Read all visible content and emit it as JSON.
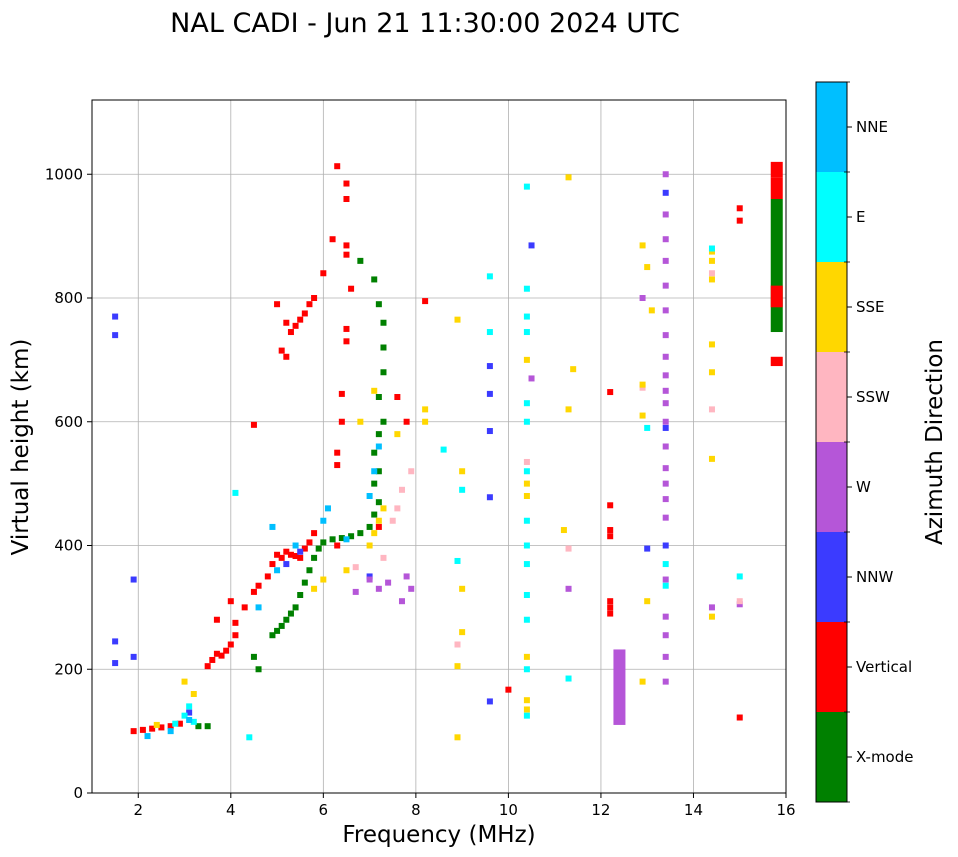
{
  "chart_data": {
    "type": "scatter",
    "title": "NAL CADI - Jun 21 11:30:00 2024 UTC",
    "xlabel": "Frequency (MHz)",
    "ylabel": "Virtual height (km)",
    "xlim": [
      1,
      16
    ],
    "ylim": [
      0,
      1120
    ],
    "xticks": [
      2,
      4,
      6,
      8,
      10,
      12,
      14,
      16
    ],
    "yticks": [
      0,
      200,
      400,
      600,
      800,
      1000
    ],
    "grid": true,
    "colorbar": {
      "label": "Azimuth Direction",
      "categories": [
        {
          "name": "X-mode",
          "color": "#008000"
        },
        {
          "name": "Vertical",
          "color": "#ff0000"
        },
        {
          "name": "NNW",
          "color": "#3b3bff"
        },
        {
          "name": "W",
          "color": "#b556d8"
        },
        {
          "name": "SSW",
          "color": "#ffb6c1"
        },
        {
          "name": "SSE",
          "color": "#ffd700"
        },
        {
          "name": "E",
          "color": "#00ffff"
        },
        {
          "name": "NNE",
          "color": "#00bfff"
        }
      ]
    },
    "series": [
      {
        "name": "Vertical",
        "color": "#ff0000",
        "points": [
          [
            1.9,
            100
          ],
          [
            2.1,
            102
          ],
          [
            2.3,
            104
          ],
          [
            2.5,
            106
          ],
          [
            2.7,
            108
          ],
          [
            2.9,
            112
          ],
          [
            3.5,
            205
          ],
          [
            3.6,
            215
          ],
          [
            3.7,
            225
          ],
          [
            3.8,
            222
          ],
          [
            3.9,
            230
          ],
          [
            4.0,
            240
          ],
          [
            4.1,
            255
          ],
          [
            4.1,
            275
          ],
          [
            4.3,
            300
          ],
          [
            4.5,
            325
          ],
          [
            4.6,
            335
          ],
          [
            4.8,
            350
          ],
          [
            4.9,
            370
          ],
          [
            5.0,
            385
          ],
          [
            5.1,
            380
          ],
          [
            5.2,
            390
          ],
          [
            5.3,
            385
          ],
          [
            5.4,
            383
          ],
          [
            5.5,
            380
          ],
          [
            5.6,
            395
          ],
          [
            5.7,
            405
          ],
          [
            5.8,
            420
          ],
          [
            3.7,
            280
          ],
          [
            4.0,
            310
          ],
          [
            4.5,
            595
          ],
          [
            5.0,
            790
          ],
          [
            5.2,
            760
          ],
          [
            5.3,
            745
          ],
          [
            5.4,
            755
          ],
          [
            5.5,
            765
          ],
          [
            5.6,
            775
          ],
          [
            5.7,
            790
          ],
          [
            5.8,
            800
          ],
          [
            6.0,
            840
          ],
          [
            5.1,
            715
          ],
          [
            5.2,
            705
          ],
          [
            6.3,
            400
          ],
          [
            6.3,
            530
          ],
          [
            6.3,
            550
          ],
          [
            6.4,
            600
          ],
          [
            6.4,
            645
          ],
          [
            6.5,
            730
          ],
          [
            6.5,
            750
          ],
          [
            6.5,
            870
          ],
          [
            6.5,
            885
          ],
          [
            6.5,
            960
          ],
          [
            6.5,
            985
          ],
          [
            6.6,
            815
          ],
          [
            6.2,
            895
          ],
          [
            6.3,
            1013
          ],
          [
            7.2,
            430
          ],
          [
            7.6,
            640
          ],
          [
            7.8,
            600
          ],
          [
            8.2,
            795
          ],
          [
            10.0,
            167
          ],
          [
            12.2,
            300
          ],
          [
            12.2,
            310
          ],
          [
            12.2,
            290
          ],
          [
            12.2,
            415
          ],
          [
            12.2,
            425
          ],
          [
            12.2,
            465
          ],
          [
            12.2,
            648
          ],
          [
            15.0,
            925
          ],
          [
            15.0,
            945
          ],
          [
            15.0,
            122
          ]
        ]
      },
      {
        "name": "X-mode",
        "color": "#008000",
        "points": [
          [
            3.3,
            108
          ],
          [
            3.5,
            108
          ],
          [
            4.9,
            255
          ],
          [
            5.0,
            262
          ],
          [
            5.1,
            270
          ],
          [
            5.2,
            280
          ],
          [
            5.3,
            290
          ],
          [
            5.4,
            300
          ],
          [
            5.5,
            320
          ],
          [
            5.6,
            340
          ],
          [
            5.7,
            360
          ],
          [
            5.8,
            380
          ],
          [
            5.9,
            395
          ],
          [
            6.0,
            405
          ],
          [
            6.2,
            410
          ],
          [
            6.4,
            412
          ],
          [
            6.6,
            415
          ],
          [
            6.8,
            420
          ],
          [
            7.0,
            430
          ],
          [
            7.1,
            450
          ],
          [
            7.2,
            470
          ],
          [
            7.1,
            500
          ],
          [
            7.2,
            520
          ],
          [
            7.1,
            550
          ],
          [
            7.2,
            580
          ],
          [
            7.3,
            600
          ],
          [
            7.2,
            640
          ],
          [
            7.3,
            680
          ],
          [
            7.3,
            720
          ],
          [
            7.3,
            760
          ],
          [
            7.2,
            790
          ],
          [
            7.1,
            830
          ],
          [
            6.8,
            860
          ],
          [
            4.6,
            200
          ],
          [
            4.5,
            220
          ]
        ]
      },
      {
        "name": "NNW",
        "color": "#3b3bff",
        "points": [
          [
            1.5,
            740
          ],
          [
            1.5,
            770
          ],
          [
            1.5,
            245
          ],
          [
            1.5,
            210
          ],
          [
            1.9,
            345
          ],
          [
            1.9,
            220
          ],
          [
            3.1,
            130
          ],
          [
            5.2,
            370
          ],
          [
            5.5,
            390
          ],
          [
            7.0,
            350
          ],
          [
            9.6,
            148
          ],
          [
            9.6,
            478
          ],
          [
            9.6,
            585
          ],
          [
            9.6,
            645
          ],
          [
            9.6,
            690
          ],
          [
            10.5,
            885
          ],
          [
            13.0,
            395
          ],
          [
            13.4,
            400
          ],
          [
            13.4,
            590
          ],
          [
            13.4,
            970
          ]
        ]
      },
      {
        "name": "W",
        "color": "#b556d8",
        "points": [
          [
            6.7,
            325
          ],
          [
            7.0,
            345
          ],
          [
            7.2,
            330
          ],
          [
            7.4,
            340
          ],
          [
            7.8,
            350
          ],
          [
            7.9,
            330
          ],
          [
            7.7,
            310
          ],
          [
            11.3,
            330
          ],
          [
            12.9,
            800
          ],
          [
            13.4,
            180
          ],
          [
            13.4,
            220
          ],
          [
            13.4,
            255
          ],
          [
            13.4,
            285
          ],
          [
            13.4,
            345
          ],
          [
            13.4,
            445
          ],
          [
            13.4,
            475
          ],
          [
            13.4,
            500
          ],
          [
            13.4,
            525
          ],
          [
            13.4,
            560
          ],
          [
            13.4,
            600
          ],
          [
            13.4,
            630
          ],
          [
            13.4,
            650
          ],
          [
            13.4,
            675
          ],
          [
            13.4,
            705
          ],
          [
            13.4,
            740
          ],
          [
            13.4,
            780
          ],
          [
            13.4,
            820
          ],
          [
            13.4,
            860
          ],
          [
            13.4,
            895
          ],
          [
            13.4,
            935
          ],
          [
            13.4,
            1000
          ],
          [
            14.4,
            300
          ],
          [
            15.0,
            305
          ],
          [
            10.5,
            670
          ]
        ]
      },
      {
        "name": "SSW",
        "color": "#ffb6c1",
        "points": [
          [
            6.7,
            365
          ],
          [
            7.3,
            380
          ],
          [
            7.6,
            460
          ],
          [
            7.7,
            490
          ],
          [
            7.5,
            440
          ],
          [
            7.9,
            520
          ],
          [
            8.9,
            240
          ],
          [
            10.4,
            535
          ],
          [
            11.3,
            395
          ],
          [
            12.9,
            655
          ],
          [
            14.4,
            620
          ],
          [
            14.4,
            840
          ],
          [
            15.0,
            310
          ]
        ]
      },
      {
        "name": "SSE",
        "color": "#ffd700",
        "points": [
          [
            2.4,
            110
          ],
          [
            3.2,
            160
          ],
          [
            3.0,
            180
          ],
          [
            5.8,
            330
          ],
          [
            6.0,
            345
          ],
          [
            6.5,
            360
          ],
          [
            7.0,
            400
          ],
          [
            7.1,
            420
          ],
          [
            7.2,
            440
          ],
          [
            7.3,
            460
          ],
          [
            6.8,
            600
          ],
          [
            7.1,
            650
          ],
          [
            7.6,
            580
          ],
          [
            8.2,
            600
          ],
          [
            8.2,
            620
          ],
          [
            8.9,
            90
          ],
          [
            8.9,
            205
          ],
          [
            9.0,
            260
          ],
          [
            9.0,
            330
          ],
          [
            9.0,
            520
          ],
          [
            8.9,
            765
          ],
          [
            10.4,
            135
          ],
          [
            10.4,
            150
          ],
          [
            10.4,
            220
          ],
          [
            10.4,
            480
          ],
          [
            10.4,
            500
          ],
          [
            10.4,
            700
          ],
          [
            11.2,
            425
          ],
          [
            11.3,
            995
          ],
          [
            11.3,
            620
          ],
          [
            11.4,
            685
          ],
          [
            12.9,
            180
          ],
          [
            12.9,
            610
          ],
          [
            12.9,
            660
          ],
          [
            12.9,
            885
          ],
          [
            13.0,
            310
          ],
          [
            13.0,
            850
          ],
          [
            13.1,
            780
          ],
          [
            14.4,
            285
          ],
          [
            14.4,
            540
          ],
          [
            14.4,
            680
          ],
          [
            14.4,
            725
          ],
          [
            14.4,
            830
          ],
          [
            14.4,
            860
          ],
          [
            14.4,
            875
          ]
        ]
      },
      {
        "name": "E",
        "color": "#00ffff",
        "points": [
          [
            2.8,
            112
          ],
          [
            3.0,
            125
          ],
          [
            3.1,
            140
          ],
          [
            3.2,
            115
          ],
          [
            8.6,
            555
          ],
          [
            8.9,
            375
          ],
          [
            9.0,
            490
          ],
          [
            9.6,
            745
          ],
          [
            9.6,
            835
          ],
          [
            10.4,
            125
          ],
          [
            10.4,
            200
          ],
          [
            10.4,
            280
          ],
          [
            10.4,
            320
          ],
          [
            10.4,
            370
          ],
          [
            10.4,
            400
          ],
          [
            10.4,
            440
          ],
          [
            10.4,
            520
          ],
          [
            10.4,
            600
          ],
          [
            10.4,
            630
          ],
          [
            10.4,
            745
          ],
          [
            10.4,
            770
          ],
          [
            10.4,
            815
          ],
          [
            10.4,
            980
          ],
          [
            11.3,
            185
          ],
          [
            13.0,
            590
          ],
          [
            13.4,
            335
          ],
          [
            13.4,
            370
          ],
          [
            14.4,
            880
          ],
          [
            15.0,
            350
          ],
          [
            4.4,
            90
          ],
          [
            4.1,
            485
          ]
        ]
      },
      {
        "name": "NNE",
        "color": "#00bfff",
        "points": [
          [
            5.0,
            360
          ],
          [
            5.4,
            400
          ],
          [
            6.0,
            440
          ],
          [
            6.1,
            460
          ],
          [
            6.5,
            410
          ],
          [
            7.0,
            480
          ],
          [
            7.1,
            520
          ],
          [
            7.2,
            560
          ],
          [
            4.9,
            430
          ],
          [
            4.6,
            300
          ],
          [
            2.2,
            92
          ],
          [
            2.7,
            100
          ],
          [
            3.1,
            118
          ]
        ]
      }
    ],
    "columns": [
      {
        "name": "Vertical",
        "x": 15.8,
        "y0": 995,
        "y1": 1020,
        "color": "#ff0000"
      },
      {
        "name": "Vertical",
        "x": 15.8,
        "y0": 960,
        "y1": 995,
        "color": "#ff0000"
      },
      {
        "name": "X-mode",
        "x": 15.8,
        "y0": 745,
        "y1": 960,
        "color": "#008000"
      },
      {
        "name": "Vertical",
        "x": 15.8,
        "y0": 785,
        "y1": 820,
        "color": "#ff0000"
      },
      {
        "name": "Vertical",
        "x": 15.8,
        "y0": 690,
        "y1": 705,
        "color": "#ff0000"
      },
      {
        "name": "W",
        "x": 12.4,
        "y0": 110,
        "y1": 232,
        "color": "#b556d8"
      }
    ]
  }
}
